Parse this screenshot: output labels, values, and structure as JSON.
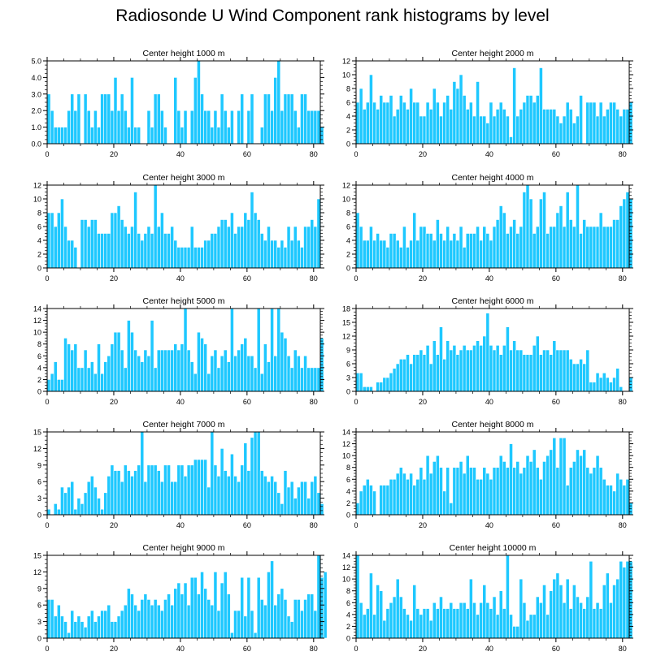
{
  "title": "Radiosonde U Wind Component rank histograms by level",
  "colors": {
    "bar": "#1ec8ff",
    "bar_edge": "#ffffff",
    "axis": "#000000",
    "background": "#ffffff"
  },
  "chart_data": [
    {
      "type": "bar",
      "title": "Center height 1000 m",
      "xlabel": "",
      "ylabel": "",
      "xlim": [
        0,
        82
      ],
      "ylim": [
        0,
        5
      ],
      "xticks": [
        "0",
        "20",
        "40",
        "60",
        "80"
      ],
      "yticks": [
        "0.0",
        "1.0",
        "2.0",
        "3.0",
        "4.0",
        "5.0"
      ],
      "values": [
        3,
        2,
        1,
        1,
        1,
        1,
        2,
        3,
        2,
        3,
        0,
        3,
        2,
        1,
        2,
        1,
        3,
        3,
        3,
        2,
        4,
        2,
        3,
        2,
        1,
        4,
        1,
        1,
        0,
        0,
        2,
        1,
        3,
        3,
        2,
        1,
        0,
        0,
        4,
        2,
        1,
        2,
        0,
        2,
        4,
        5,
        3,
        2,
        2,
        1,
        2,
        1,
        3,
        2,
        1,
        2,
        0,
        2,
        3,
        0,
        2,
        3,
        0,
        0,
        1,
        3,
        3,
        2,
        4,
        5,
        2,
        3,
        3,
        3,
        2,
        1,
        3,
        3,
        2,
        2,
        2,
        2,
        1
      ]
    },
    {
      "type": "bar",
      "title": "Center height 2000 m",
      "xlabel": "",
      "ylabel": "",
      "xlim": [
        0,
        82
      ],
      "ylim": [
        0,
        12
      ],
      "xticks": [
        "0",
        "20",
        "40",
        "60",
        "80"
      ],
      "yticks": [
        "0",
        "2",
        "4",
        "6",
        "8",
        "10",
        "12"
      ],
      "values": [
        6,
        8,
        5,
        6,
        10,
        6,
        5,
        7,
        6,
        6,
        7,
        4,
        5,
        7,
        6,
        5,
        8,
        6,
        6,
        4,
        4,
        6,
        5,
        8,
        6,
        4,
        6,
        7,
        5,
        9,
        8,
        10,
        7,
        5,
        6,
        4,
        9,
        4,
        4,
        3,
        6,
        4,
        5,
        6,
        5,
        4,
        1,
        11,
        4,
        5,
        6,
        7,
        7,
        6,
        7,
        11,
        5,
        5,
        5,
        5,
        4,
        3,
        4,
        6,
        5,
        3,
        4,
        7,
        0,
        6,
        6,
        6,
        4,
        6,
        4,
        5,
        6,
        6,
        5,
        4,
        5,
        5,
        6
      ]
    },
    {
      "type": "bar",
      "title": "Center height 3000 m",
      "xlabel": "",
      "ylabel": "",
      "xlim": [
        0,
        82
      ],
      "ylim": [
        0,
        12
      ],
      "xticks": [
        "0",
        "20",
        "40",
        "60",
        "80"
      ],
      "yticks": [
        "0",
        "2",
        "4",
        "6",
        "8",
        "10",
        "12"
      ],
      "values": [
        8,
        8,
        6,
        8,
        10,
        6,
        4,
        4,
        3,
        0,
        7,
        7,
        6,
        7,
        7,
        5,
        5,
        5,
        5,
        8,
        8,
        9,
        7,
        6,
        5,
        6,
        11,
        5,
        4,
        5,
        6,
        5,
        12,
        6,
        8,
        5,
        5,
        6,
        4,
        3,
        3,
        3,
        3,
        6,
        3,
        3,
        3,
        4,
        4,
        5,
        5,
        6,
        7,
        7,
        6,
        8,
        5,
        6,
        6,
        8,
        7,
        11,
        8,
        7,
        5,
        4,
        6,
        4,
        4,
        3,
        4,
        3,
        6,
        4,
        6,
        4,
        3,
        6,
        6,
        7,
        6,
        10,
        0
      ]
    },
    {
      "type": "bar",
      "title": "Center height 4000 m",
      "xlabel": "",
      "ylabel": "",
      "xlim": [
        0,
        82
      ],
      "ylim": [
        0,
        12
      ],
      "xticks": [
        "0",
        "20",
        "40",
        "60",
        "80"
      ],
      "yticks": [
        "0",
        "2",
        "4",
        "6",
        "8",
        "10",
        "12"
      ],
      "values": [
        8,
        6,
        4,
        4,
        6,
        4,
        5,
        4,
        4,
        3,
        5,
        5,
        4,
        3,
        6,
        3,
        4,
        8,
        4,
        6,
        6,
        5,
        5,
        4,
        7,
        5,
        4,
        6,
        4,
        5,
        4,
        6,
        3,
        5,
        5,
        5,
        6,
        4,
        6,
        5,
        4,
        6,
        7,
        9,
        8,
        5,
        6,
        7,
        5,
        6,
        11,
        12,
        10,
        5,
        6,
        10,
        11,
        5,
        6,
        6,
        8,
        9,
        6,
        11,
        7,
        6,
        12,
        5,
        7,
        6,
        6,
        6,
        6,
        8,
        6,
        6,
        6,
        7,
        7,
        9,
        10,
        11,
        10
      ]
    },
    {
      "type": "bar",
      "title": "Center height 5000 m",
      "xlabel": "",
      "ylabel": "",
      "xlim": [
        0,
        82
      ],
      "ylim": [
        0,
        14
      ],
      "xticks": [
        "0",
        "20",
        "40",
        "60",
        "80"
      ],
      "yticks": [
        "0",
        "2",
        "4",
        "6",
        "8",
        "10",
        "12",
        "14"
      ],
      "values": [
        2,
        3,
        5,
        2,
        2,
        9,
        8,
        7,
        8,
        4,
        4,
        7,
        4,
        5,
        3,
        8,
        3,
        5,
        6,
        8,
        10,
        10,
        7,
        4,
        12,
        10,
        7,
        6,
        5,
        7,
        6,
        12,
        4,
        7,
        7,
        7,
        7,
        7,
        8,
        7,
        8,
        14,
        7,
        5,
        3,
        10,
        9,
        8,
        3,
        6,
        7,
        4,
        6,
        7,
        5,
        14,
        6,
        7,
        8,
        9,
        6,
        6,
        4,
        14,
        3,
        8,
        5,
        14,
        6,
        14,
        10,
        9,
        6,
        4,
        7,
        6,
        4,
        6,
        4,
        4,
        4,
        4,
        9
      ]
    },
    {
      "type": "bar",
      "title": "Center height 6000 m",
      "xlabel": "",
      "ylabel": "",
      "xlim": [
        0,
        82
      ],
      "ylim": [
        0,
        18
      ],
      "xticks": [
        "0",
        "20",
        "40",
        "60",
        "80"
      ],
      "yticks": [
        "0",
        "3",
        "6",
        "9",
        "12",
        "15",
        "18"
      ],
      "values": [
        4,
        4,
        1,
        1,
        1,
        0,
        2,
        2,
        3,
        3,
        4,
        5,
        6,
        7,
        7,
        8,
        6,
        8,
        8,
        9,
        8,
        10,
        6,
        11,
        8,
        14,
        7,
        11,
        9,
        10,
        8,
        9,
        10,
        9,
        9,
        10,
        11,
        10,
        12,
        17,
        10,
        9,
        10,
        8,
        10,
        14,
        9,
        11,
        9,
        9,
        8,
        8,
        8,
        10,
        12,
        8,
        9,
        9,
        8,
        11,
        9,
        9,
        9,
        9,
        7,
        6,
        6,
        7,
        6,
        9,
        2,
        2,
        4,
        3,
        4,
        3,
        2,
        3,
        5,
        1,
        0,
        0,
        3
      ]
    },
    {
      "type": "bar",
      "title": "Center height 7000 m",
      "xlabel": "",
      "ylabel": "",
      "xlim": [
        0,
        82
      ],
      "ylim": [
        0,
        15
      ],
      "xticks": [
        "0",
        "20",
        "40",
        "60",
        "80"
      ],
      "yticks": [
        "0",
        "3",
        "6",
        "9",
        "12",
        "15"
      ],
      "values": [
        1,
        0,
        2,
        1,
        5,
        4,
        5,
        6,
        1,
        3,
        2,
        4,
        6,
        7,
        5,
        3,
        1,
        4,
        7,
        9,
        8,
        8,
        6,
        9,
        8,
        7,
        8,
        9,
        15,
        6,
        9,
        9,
        9,
        8,
        6,
        9,
        9,
        6,
        6,
        9,
        9,
        7,
        9,
        9,
        10,
        10,
        10,
        10,
        5,
        15,
        9,
        7,
        12,
        8,
        7,
        11,
        7,
        6,
        9,
        13,
        8,
        14,
        15,
        15,
        8,
        7,
        6,
        7,
        6,
        4,
        2,
        8,
        5,
        6,
        3,
        5,
        6,
        6,
        3,
        6,
        7,
        4,
        2
      ]
    },
    {
      "type": "bar",
      "title": "Center height 8000 m",
      "xlabel": "",
      "ylabel": "",
      "xlim": [
        0,
        82
      ],
      "ylim": [
        0,
        14
      ],
      "xticks": [
        "0",
        "20",
        "40",
        "60",
        "80"
      ],
      "yticks": [
        "0",
        "2",
        "4",
        "6",
        "8",
        "10",
        "12",
        "14"
      ],
      "values": [
        2,
        4,
        5,
        6,
        5,
        4,
        0,
        5,
        5,
        5,
        6,
        6,
        7,
        8,
        7,
        6,
        7,
        5,
        6,
        8,
        6,
        10,
        7,
        9,
        10,
        8,
        4,
        8,
        2,
        8,
        8,
        9,
        7,
        10,
        8,
        8,
        6,
        6,
        8,
        7,
        6,
        8,
        8,
        10,
        9,
        8,
        12,
        8,
        9,
        7,
        8,
        10,
        9,
        11,
        8,
        6,
        9,
        10,
        11,
        13,
        8,
        13,
        13,
        5,
        8,
        9,
        11,
        10,
        11,
        8,
        7,
        8,
        10,
        8,
        6,
        5,
        5,
        4,
        7,
        6,
        5,
        6,
        2
      ]
    },
    {
      "type": "bar",
      "title": "Center height 9000 m",
      "xlabel": "",
      "ylabel": "",
      "xlim": [
        0,
        82
      ],
      "ylim": [
        0,
        15
      ],
      "xticks": [
        "0",
        "20",
        "40",
        "60",
        "80"
      ],
      "yticks": [
        "0",
        "3",
        "6",
        "9",
        "12",
        "15"
      ],
      "values": [
        7,
        7,
        4,
        6,
        4,
        3,
        1,
        5,
        3,
        4,
        3,
        2,
        4,
        5,
        3,
        4,
        5,
        5,
        6,
        3,
        3,
        4,
        5,
        6,
        9,
        8,
        6,
        5,
        7,
        8,
        7,
        6,
        7,
        6,
        5,
        7,
        8,
        6,
        9,
        10,
        8,
        10,
        6,
        11,
        11,
        8,
        12,
        9,
        7,
        6,
        12,
        5,
        10,
        12,
        8,
        1,
        5,
        5,
        11,
        4,
        11,
        5,
        1,
        11,
        7,
        6,
        12,
        14,
        6,
        8,
        9,
        7,
        4,
        3,
        7,
        7,
        5,
        7,
        8,
        8,
        5,
        15,
        11,
        12
      ]
    },
    {
      "type": "bar",
      "title": "Center height 10000 m",
      "xlabel": "",
      "ylabel": "",
      "xlim": [
        0,
        82
      ],
      "ylim": [
        0,
        14
      ],
      "xticks": [
        "0",
        "20",
        "40",
        "60",
        "80"
      ],
      "yticks": [
        "0",
        "2",
        "4",
        "6",
        "8",
        "10",
        "12",
        "14"
      ],
      "values": [
        14,
        6,
        4,
        5,
        11,
        4,
        9,
        8,
        3,
        5,
        6,
        7,
        10,
        7,
        5,
        4,
        3,
        9,
        5,
        4,
        5,
        5,
        3,
        6,
        5,
        7,
        5,
        5,
        6,
        5,
        5,
        6,
        6,
        5,
        10,
        6,
        4,
        6,
        9,
        6,
        5,
        7,
        4,
        8,
        5,
        14,
        4,
        2,
        2,
        10,
        6,
        3,
        4,
        4,
        7,
        6,
        9,
        4,
        8,
        10,
        11,
        9,
        6,
        10,
        5,
        9,
        7,
        6,
        5,
        7,
        13,
        5,
        6,
        5,
        9,
        11,
        6,
        9,
        10,
        13,
        12,
        13,
        13
      ]
    }
  ]
}
